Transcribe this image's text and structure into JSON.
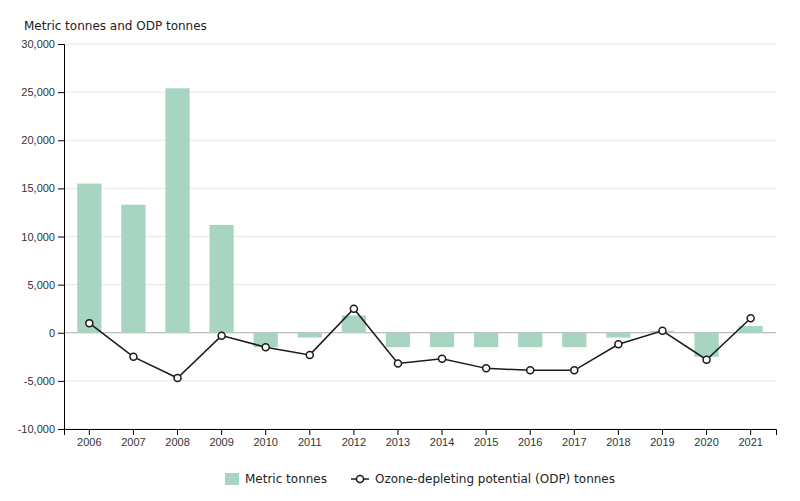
{
  "chart_data": {
    "type": "bar",
    "ylabel": "Metric tonnes and ODP tonnes",
    "categories": [
      "2006",
      "2007",
      "2008",
      "2009",
      "2010",
      "2011",
      "2012",
      "2013",
      "2014",
      "2015",
      "2016",
      "2017",
      "2018",
      "2019",
      "2020",
      "2021"
    ],
    "series": [
      {
        "name": "Metric tonnes",
        "type": "bar",
        "color": "#a8d5c2",
        "values": [
          15500,
          13300,
          25400,
          11200,
          -1500,
          -500,
          1800,
          -1500,
          -1500,
          -1500,
          -1500,
          -1500,
          -500,
          200,
          -2500,
          700
        ]
      },
      {
        "name": "Ozone-depleting potential (ODP) tonnes",
        "type": "line",
        "color": "#1a1a1a",
        "marker": "circle",
        "values": [
          1000,
          -2500,
          -4700,
          -300,
          -1500,
          -2300,
          2500,
          -3200,
          -2700,
          -3700,
          -3900,
          -3900,
          -1200,
          200,
          -2800,
          1500
        ]
      }
    ],
    "ylim": [
      -10000,
      30000
    ],
    "yticks": [
      {
        "value": -10000,
        "label": "-10,000"
      },
      {
        "value": -5000,
        "label": "-5,000"
      },
      0,
      {
        "value": 5000,
        "label": "5,000"
      },
      {
        "value": 10000,
        "label": "10,000"
      },
      {
        "value": 15000,
        "label": "15,000"
      },
      {
        "value": 20000,
        "label": "20,000"
      },
      {
        "value": 25000,
        "label": "25,000"
      },
      {
        "value": 30000,
        "label": "30,000"
      }
    ],
    "grid": true,
    "legend": "bottom"
  }
}
